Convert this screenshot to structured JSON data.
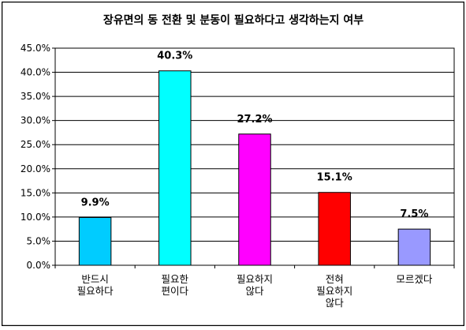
{
  "chart_data": {
    "type": "bar",
    "title": "장유면의 동 전환 및 분동이 필요하다고 생각하는지 여부",
    "categories": [
      [
        "반드시",
        "필요하다"
      ],
      [
        "필요한",
        "편이다"
      ],
      [
        "필요하지",
        "않다"
      ],
      [
        "전혀",
        "필요하지",
        "않다"
      ],
      [
        "모르겠다"
      ]
    ],
    "values": [
      9.9,
      40.3,
      27.2,
      15.1,
      7.5
    ],
    "value_labels": [
      "9.9%",
      "40.3%",
      "27.2%",
      "15.1%",
      "7.5%"
    ],
    "bar_colors": [
      "#00CCFF",
      "#00FFFF",
      "#FF00FF",
      "#FF0000",
      "#9999FF"
    ],
    "ylim": [
      0,
      45
    ],
    "yticks": [
      0,
      5,
      10,
      15,
      20,
      25,
      30,
      35,
      40,
      45
    ],
    "ytick_labels": [
      "0.0%",
      "5.0%",
      "10.0%",
      "15.0%",
      "20.0%",
      "25.0%",
      "30.0%",
      "35.0%",
      "40.0%",
      "45.0%"
    ],
    "grid": true,
    "legend": "none",
    "xlabel": "",
    "ylabel": ""
  }
}
